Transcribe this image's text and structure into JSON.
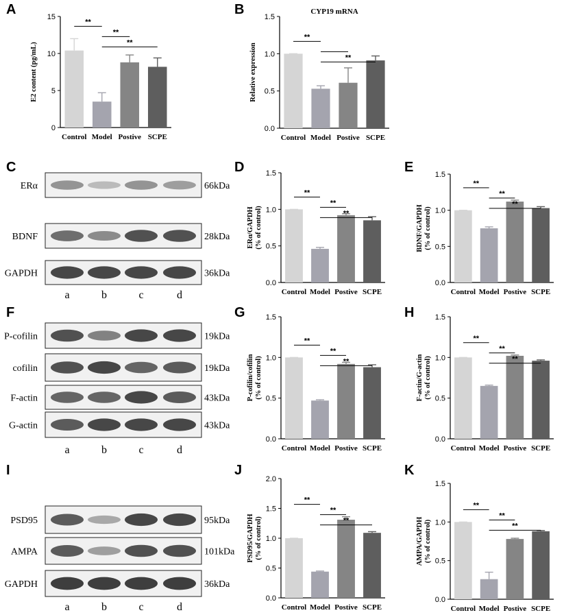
{
  "colors": {
    "Control": "#d5d5d5",
    "Model": "#a4a4ae",
    "Postive": "#858585",
    "SCPE": "#5e5e5e"
  },
  "blot_lane_labels": [
    "a",
    "b",
    "c",
    "d"
  ],
  "blots": [
    {
      "panel": "C",
      "bands": [
        {
          "protein": "ERα",
          "size": "66kDa",
          "intensity": [
            0.45,
            0.25,
            0.45,
            0.4
          ]
        },
        {
          "protein": "BDNF",
          "size": "28kDa",
          "intensity": [
            0.65,
            0.5,
            0.8,
            0.8
          ]
        },
        {
          "protein": "GAPDH",
          "size": "36kDa",
          "intensity": [
            0.85,
            0.85,
            0.85,
            0.85
          ]
        }
      ]
    },
    {
      "panel": "F",
      "bands": [
        {
          "protein": "P-cofilin",
          "size": "19kDa",
          "intensity": [
            0.8,
            0.55,
            0.85,
            0.85
          ]
        },
        {
          "protein": "cofilin",
          "size": "19kDa",
          "intensity": [
            0.8,
            0.85,
            0.7,
            0.75
          ]
        },
        {
          "protein": "F-actin",
          "size": "43kDa",
          "intensity": [
            0.7,
            0.7,
            0.85,
            0.75
          ]
        },
        {
          "protein": "G-actin",
          "size": "43kDa",
          "intensity": [
            0.75,
            0.85,
            0.85,
            0.85
          ]
        }
      ]
    },
    {
      "panel": "I",
      "bands": [
        {
          "protein": "PSD95",
          "size": "95kDa",
          "intensity": [
            0.75,
            0.35,
            0.85,
            0.85
          ]
        },
        {
          "protein": "AMPA",
          "size": "101kDa",
          "intensity": [
            0.75,
            0.4,
            0.8,
            0.8
          ]
        },
        {
          "protein": "GAPDH",
          "size": "36kDa",
          "intensity": [
            0.9,
            0.9,
            0.9,
            0.9
          ]
        }
      ]
    }
  ],
  "chart_data": [
    {
      "panel": "A",
      "type": "bar",
      "title": "",
      "categories": [
        "Control",
        "Model",
        "Postive",
        "SCPE"
      ],
      "values": [
        10.4,
        3.5,
        8.8,
        8.2
      ],
      "errors": [
        1.6,
        1.2,
        1.0,
        1.2
      ],
      "ylabel": "E2 content (pg/mL)",
      "ylim": [
        0,
        15
      ],
      "yticks": [
        "0",
        "5",
        "10",
        "15"
      ],
      "sig": [
        {
          "from": 0,
          "to": 1,
          "label": "**"
        },
        {
          "from": 1,
          "to": 2,
          "label": "**"
        },
        {
          "from": 1,
          "to": 3,
          "label": "**"
        }
      ]
    },
    {
      "panel": "B",
      "type": "bar",
      "title": "CYP19 mRNA",
      "categories": [
        "Control",
        "Model",
        "Postive",
        "SCPE"
      ],
      "values": [
        1.0,
        0.53,
        0.61,
        0.91
      ],
      "errors": [
        0.0,
        0.04,
        0.2,
        0.06
      ],
      "ylabel": "Relative expression",
      "ylim": [
        0,
        1.5
      ],
      "yticks": [
        "0.0",
        "0.5",
        "1.0",
        "1.5"
      ],
      "sig": [
        {
          "from": 0,
          "to": 1,
          "label": "**"
        },
        {
          "from": 1,
          "to": 2,
          "label": ""
        },
        {
          "from": 1,
          "to": 3,
          "label": "**"
        }
      ]
    },
    {
      "panel": "D",
      "type": "bar",
      "title": "",
      "categories": [
        "Control",
        "Model",
        "Postive",
        "SCPE"
      ],
      "values": [
        1.0,
        0.46,
        0.92,
        0.85
      ],
      "errors": [
        0.0,
        0.02,
        0.02,
        0.05
      ],
      "ylabel": "ERα/GAPDH\n(% of control)",
      "ylim": [
        0,
        1.5
      ],
      "yticks": [
        "0.0",
        "0.5",
        "1.0",
        "1.5"
      ],
      "sig": [
        {
          "from": 0,
          "to": 1,
          "label": "**"
        },
        {
          "from": 1,
          "to": 2,
          "label": "**"
        },
        {
          "from": 1,
          "to": 3,
          "label": "**"
        }
      ]
    },
    {
      "panel": "E",
      "type": "bar",
      "title": "",
      "categories": [
        "Control",
        "Model",
        "Postive",
        "SCPE"
      ],
      "values": [
        1.0,
        0.75,
        1.12,
        1.03
      ],
      "errors": [
        0.0,
        0.02,
        0.02,
        0.02
      ],
      "ylabel": "BDNF/GAPDH\n(% of control)",
      "ylim": [
        0,
        1.5
      ],
      "yticks": [
        "0.0",
        "0.5",
        "1.0",
        "1.5"
      ],
      "sig": [
        {
          "from": 0,
          "to": 1,
          "label": "**"
        },
        {
          "from": 1,
          "to": 2,
          "label": "**"
        },
        {
          "from": 1,
          "to": 3,
          "label": "**"
        }
      ]
    },
    {
      "panel": "G",
      "type": "bar",
      "title": "",
      "categories": [
        "Control",
        "Model",
        "Postive",
        "SCPE"
      ],
      "values": [
        1.0,
        0.47,
        0.92,
        0.88
      ],
      "errors": [
        0.0,
        0.01,
        0.02,
        0.03
      ],
      "ylabel": "P-cofilin/cofilin\n(% of control)",
      "ylim": [
        0,
        1.5
      ],
      "yticks": [
        "0.0",
        "0.5",
        "1.0",
        "1.5"
      ],
      "sig": [
        {
          "from": 0,
          "to": 1,
          "label": "**"
        },
        {
          "from": 1,
          "to": 2,
          "label": "**"
        },
        {
          "from": 1,
          "to": 3,
          "label": "**"
        }
      ]
    },
    {
      "panel": "H",
      "type": "bar",
      "title": "",
      "categories": [
        "Control",
        "Model",
        "Postive",
        "SCPE"
      ],
      "values": [
        1.0,
        0.65,
        1.02,
        0.96
      ],
      "errors": [
        0.0,
        0.01,
        0.01,
        0.01
      ],
      "ylabel": "F-actin/G-actin\n(% of control)",
      "ylim": [
        0,
        1.5
      ],
      "yticks": [
        "0.0",
        "0.5",
        "1.0",
        "1.5"
      ],
      "sig": [
        {
          "from": 0,
          "to": 1,
          "label": "**"
        },
        {
          "from": 1,
          "to": 2,
          "label": "**"
        },
        {
          "from": 1,
          "to": 3,
          "label": "**"
        }
      ]
    },
    {
      "panel": "J",
      "type": "bar",
      "title": "",
      "categories": [
        "Control",
        "Model",
        "Postive",
        "SCPE"
      ],
      "values": [
        1.0,
        0.44,
        1.31,
        1.09
      ],
      "errors": [
        0.0,
        0.01,
        0.05,
        0.02
      ],
      "ylabel": "PSD95/GAPDH\n(% of control)",
      "ylim": [
        0,
        2.0
      ],
      "yticks": [
        "0.0",
        "0.5",
        "1.0",
        "1.5",
        "2.0"
      ],
      "sig": [
        {
          "from": 0,
          "to": 1,
          "label": "**"
        },
        {
          "from": 1,
          "to": 2,
          "label": "**"
        },
        {
          "from": 1,
          "to": 3,
          "label": "**"
        }
      ]
    },
    {
      "panel": "K",
      "type": "bar",
      "title": "",
      "categories": [
        "Control",
        "Model",
        "Postive",
        "SCPE"
      ],
      "values": [
        1.0,
        0.26,
        0.78,
        0.88
      ],
      "errors": [
        0.0,
        0.09,
        0.01,
        0.01
      ],
      "ylabel": "AMPA/GAPDH\n(% of control)",
      "ylim": [
        0,
        1.5
      ],
      "yticks": [
        "0.0",
        "0.5",
        "1.0",
        "1.5"
      ],
      "sig": [
        {
          "from": 0,
          "to": 1,
          "label": "**"
        },
        {
          "from": 1,
          "to": 2,
          "label": "**"
        },
        {
          "from": 1,
          "to": 3,
          "label": "**"
        }
      ]
    }
  ]
}
